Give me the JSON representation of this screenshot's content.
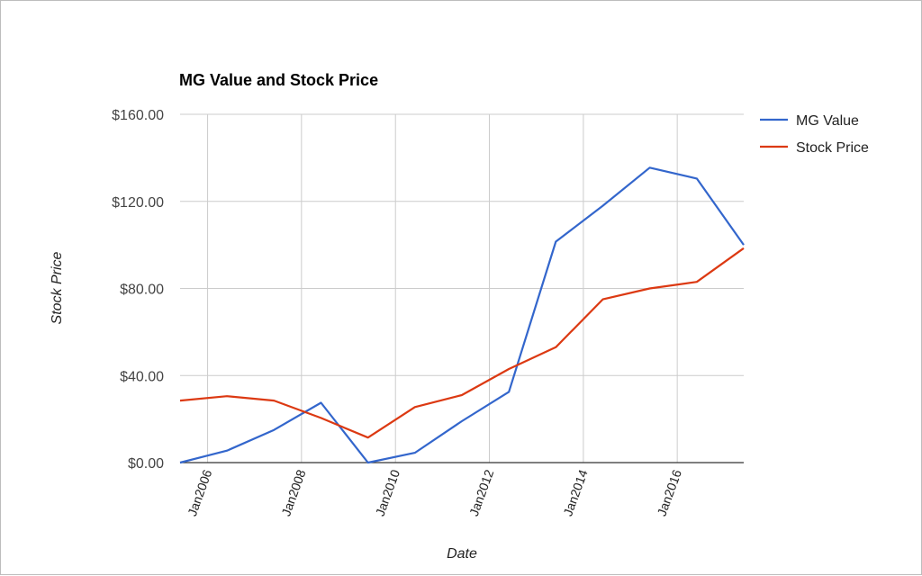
{
  "chart_data": {
    "type": "line",
    "title": "MG Value and Stock Price",
    "xlabel": "Date",
    "ylabel": "Stock Price",
    "ylim": [
      0,
      160
    ],
    "xlim": [
      "2005-06-01",
      "2017-06-01"
    ],
    "yticks": [
      0,
      40,
      80,
      120,
      160
    ],
    "ytick_labels": [
      "$0.00",
      "$40.00",
      "$80.00",
      "$120.00",
      "$160.00"
    ],
    "xticks": [
      "2006-01-01",
      "2008-01-01",
      "2010-01-01",
      "2012-01-01",
      "2014-01-01",
      "2016-01-01"
    ],
    "xtick_labels": [
      "Jan2006",
      "Jan2008",
      "Jan2010",
      "Jan2012",
      "Jan2014",
      "Jan2016"
    ],
    "grid": true,
    "legend": "right",
    "x": [
      "2005-06-01",
      "2006-06-01",
      "2007-06-01",
      "2008-06-01",
      "2009-06-01",
      "2010-06-01",
      "2011-06-01",
      "2012-06-01",
      "2013-06-01",
      "2014-06-01",
      "2015-06-01",
      "2016-06-01",
      "2017-06-01"
    ],
    "series": [
      {
        "name": "MG Value",
        "color": "#3366cc",
        "values": [
          0,
          5.5,
          15,
          27.5,
          0,
          4.5,
          19,
          32.5,
          101.5,
          118,
          135.5,
          130.5,
          100
        ]
      },
      {
        "name": "Stock Price",
        "color": "#dc3912",
        "values": [
          28.5,
          30.5,
          28.5,
          20.5,
          11.5,
          25.5,
          31,
          43,
          53,
          75,
          80,
          83,
          98.5
        ]
      }
    ]
  }
}
